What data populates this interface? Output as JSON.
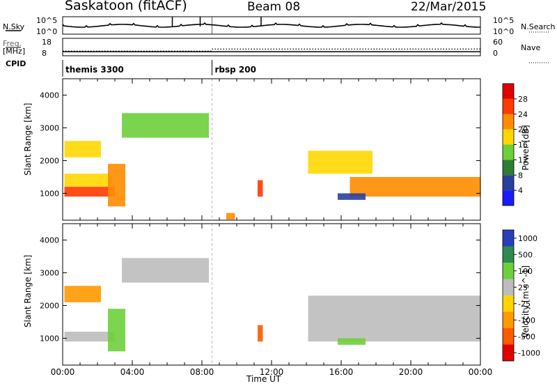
{
  "header": {
    "station": "Saskatoon (fitACF)",
    "beam": "Beam 08",
    "date": "22/Mar/2015"
  },
  "aux": {
    "nsky_label": "N.Sky",
    "nsearch_label": "N.Search",
    "freq_label": "Freq.",
    "freq_unit": "[MHz]",
    "nave_label": "Nave",
    "cpid_label": "CPID",
    "noise_ticks": [
      "10^5",
      "10^0"
    ],
    "noise_ticks_right": [
      "10^5",
      "10^0"
    ],
    "freq_ticks": [
      "18",
      "8"
    ],
    "nave_ticks": [
      "60",
      "0"
    ],
    "cpid_segments": [
      {
        "label": "themis 3300",
        "start_hour": 0,
        "end_hour": 8.58
      },
      {
        "label": "rbsp 200",
        "start_hour": 8.58,
        "end_hour": 24
      }
    ],
    "freq_mhz": 10.3,
    "nave_before": 16,
    "nave_after": 23
  },
  "axes": {
    "xlabel": "Time UT",
    "x_ticks": [
      "00:00",
      "04:00",
      "08:00",
      "12:00",
      "16:00",
      "20:00",
      "00:00"
    ],
    "ylabel": "Slant Range [km]",
    "y_ticks": [
      "4000",
      "3000",
      "2000",
      "1000"
    ]
  },
  "colorbars": {
    "power": {
      "label": "Power [dB]",
      "ticks": [
        "28",
        "24",
        "20",
        "16",
        "12",
        "8",
        "4"
      ],
      "colors": [
        "#1a1aff",
        "#2a3f9f",
        "#2e7d32",
        "#6dcf3a",
        "#ffd700",
        "#ff8c00",
        "#ff3a00",
        "#e00000"
      ]
    },
    "velocity": {
      "label": "Velocity [m s^-1]",
      "ticks": [
        "1000",
        "500",
        "100",
        "25",
        "-25",
        "-100",
        "-500",
        "-1000"
      ],
      "colors": [
        "#2a3fb5",
        "#2e8a50",
        "#6ecf3c",
        "#bdbdbd",
        "#ffd400",
        "#ff9900",
        "#ff5a00",
        "#e00000"
      ]
    }
  },
  "chart_data": [
    {
      "type": "heatmap",
      "title": "Power",
      "x_range_hours": [
        0,
        24
      ],
      "y_range_km": [
        180,
        4500
      ],
      "colorbar_label": "Power [dB]",
      "colorbar_range": [
        0,
        30
      ],
      "bands": [
        {
          "t0": 0.1,
          "t1": 3.0,
          "r0": 900,
          "r1": 1200,
          "value": 26
        },
        {
          "t0": 0.1,
          "t1": 2.8,
          "r0": 1200,
          "r1": 1600,
          "value": 18
        },
        {
          "t0": 0.1,
          "t1": 2.2,
          "r0": 2100,
          "r1": 2600,
          "value": 16
        },
        {
          "t0": 2.6,
          "t1": 3.6,
          "r0": 600,
          "r1": 1900,
          "value": 22
        },
        {
          "t0": 3.4,
          "t1": 8.4,
          "r0": 2700,
          "r1": 3450,
          "value": 12
        },
        {
          "t0": 9.4,
          "t1": 9.9,
          "r0": 200,
          "r1": 400,
          "value": 20
        },
        {
          "t0": 11.2,
          "t1": 11.5,
          "r0": 900,
          "r1": 1400,
          "value": 24
        },
        {
          "t0": 14.1,
          "t1": 17.8,
          "r0": 1600,
          "r1": 2300,
          "value": 16
        },
        {
          "t0": 16.5,
          "t1": 24.0,
          "r0": 900,
          "r1": 1500,
          "value": 22
        },
        {
          "t0": 15.8,
          "t1": 17.4,
          "r0": 800,
          "r1": 1000,
          "value": 6
        }
      ]
    },
    {
      "type": "heatmap",
      "title": "Velocity",
      "x_range_hours": [
        0,
        24
      ],
      "y_range_km": [
        180,
        4500
      ],
      "colorbar_label": "Velocity [m s^-1]",
      "colorbar_range": [
        -1000,
        1000
      ],
      "bands": [
        {
          "t0": 0.1,
          "t1": 3.0,
          "r0": 900,
          "r1": 1200,
          "value": 0
        },
        {
          "t0": 0.1,
          "t1": 2.2,
          "r0": 2100,
          "r1": 2600,
          "value": -150
        },
        {
          "t0": 2.6,
          "t1": 3.6,
          "r0": 600,
          "r1": 1900,
          "value": 60
        },
        {
          "t0": 3.4,
          "t1": 8.4,
          "r0": 2700,
          "r1": 3450,
          "value": 0
        },
        {
          "t0": 11.2,
          "t1": 11.5,
          "r0": 900,
          "r1": 1400,
          "value": -600
        },
        {
          "t0": 14.1,
          "t1": 24.0,
          "r0": 900,
          "r1": 2300,
          "value": 0
        },
        {
          "t0": 15.8,
          "t1": 17.4,
          "r0": 800,
          "r1": 1000,
          "value": 80
        }
      ]
    }
  ]
}
